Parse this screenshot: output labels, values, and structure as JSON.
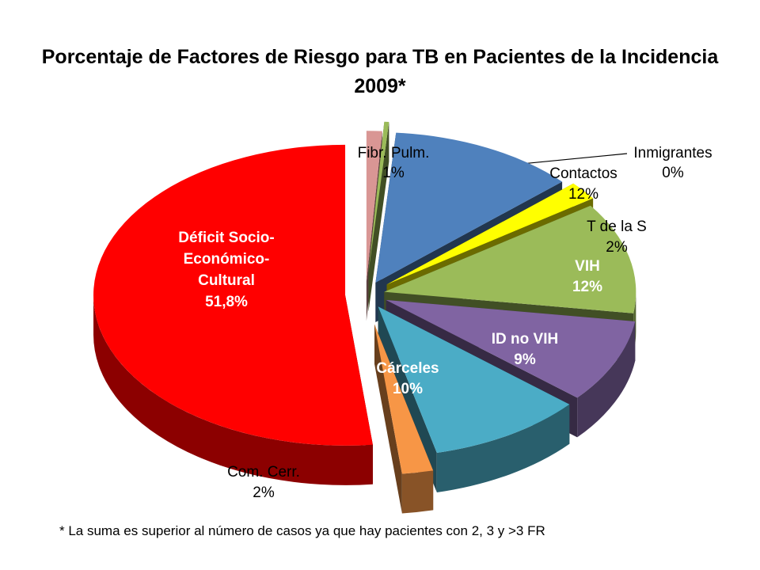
{
  "chart_data": {
    "type": "pie",
    "title": "Porcentaje de Factores de Riesgo para TB en Pacientes de la Incidencia 2009*",
    "footnote": "* La suma es superior al número de casos ya que hay pacientes con 2, 3 y >3 FR",
    "slices": [
      {
        "label_lines": [
          "Fibr. Pulm.",
          "1%"
        ],
        "value": 1,
        "percent_label": "1%",
        "color": "#D99694"
      },
      {
        "label_lines": [
          "Inmigrantes",
          "0%"
        ],
        "value": 0.3,
        "percent_label": "0%",
        "color": "#9BBB59"
      },
      {
        "label_lines": [
          "Contactos",
          "12%"
        ],
        "value": 12,
        "percent_label": "12%",
        "color": "#4F81BD"
      },
      {
        "label_lines": [
          "T de la S",
          "2%"
        ],
        "value": 2,
        "percent_label": "2%",
        "color": "#FFFF00"
      },
      {
        "label_lines": [
          "VIH",
          "12%"
        ],
        "value": 12,
        "percent_label": "12%",
        "color": "#9BBB59"
      },
      {
        "label_lines": [
          "ID no VIH",
          "9%"
        ],
        "value": 9,
        "percent_label": "9%",
        "color": "#8064A2"
      },
      {
        "label_lines": [
          "Cárceles",
          "10%"
        ],
        "value": 10,
        "percent_label": "10%",
        "color": "#4BACC6"
      },
      {
        "label_lines": [
          "Com. Cerr.",
          "2%"
        ],
        "value": 2,
        "percent_label": "2%",
        "color": "#F79646"
      },
      {
        "label_lines": [
          "Déficit Socio-",
          "Económico-",
          "Cultural",
          "51,8%"
        ],
        "value": 51.8,
        "percent_label": "51,8%",
        "color": "#FF0000"
      }
    ]
  }
}
